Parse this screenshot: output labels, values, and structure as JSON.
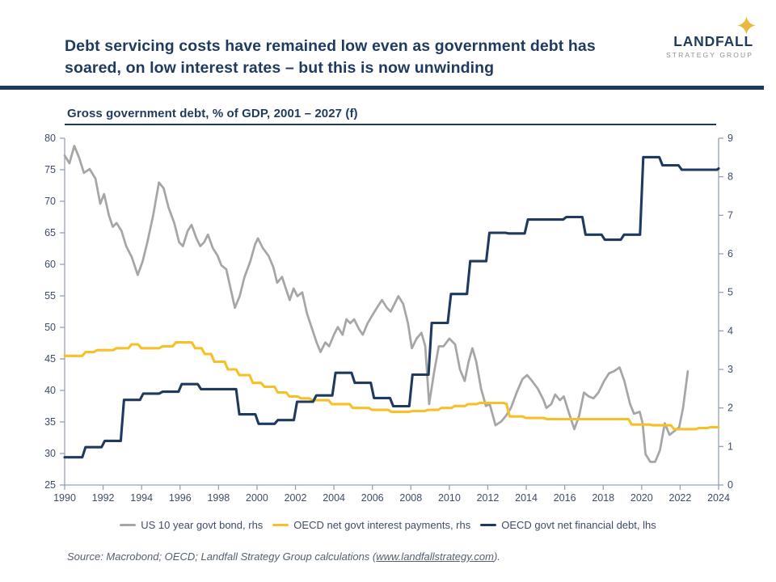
{
  "header": {
    "title_lines": [
      "Debt servicing costs have remained low even as government debt has",
      "soared, on low interest rates – but this is now unwinding"
    ],
    "logo": {
      "name": "LANDFALL",
      "subname": "STRATEGY GROUP",
      "icon": "sparkle-icon"
    }
  },
  "colors": {
    "navy": "#1F3A5F",
    "gold": "#F7C028",
    "gray_line": "#A6A6A6",
    "axis": "#95A0B5",
    "tick_text": "#3E4C66",
    "logo_gray": "#8A8F98"
  },
  "chart_data": {
    "type": "line",
    "title": "Gross government debt, % of GDP, 2001 – 2027 (f)",
    "grid": false,
    "legend_position": "bottom",
    "x_axis": {
      "min": 1990,
      "max": 2024,
      "ticks": [
        1990,
        1992,
        1994,
        1996,
        1998,
        2000,
        2002,
        2004,
        2006,
        2008,
        2010,
        2012,
        2014,
        2016,
        2018,
        2020,
        2022,
        2024
      ]
    },
    "y_axis_left": {
      "min": 25,
      "max": 80,
      "ticks": [
        25,
        30,
        35,
        40,
        45,
        50,
        55,
        60,
        65,
        70,
        75,
        80
      ]
    },
    "y_axis_right": {
      "min": 0,
      "max": 9,
      "ticks": [
        0,
        1,
        2,
        3,
        4,
        5,
        6,
        7,
        8,
        9
      ]
    },
    "series": [
      {
        "name": "US 10 year govt bond, rhs",
        "axis": "right",
        "render": "line",
        "color": "#A6A6A6",
        "points": [
          [
            1990.0,
            8.55
          ],
          [
            1990.25,
            8.35
          ],
          [
            1990.5,
            8.8
          ],
          [
            1990.75,
            8.5
          ],
          [
            1991.0,
            8.1
          ],
          [
            1991.3,
            8.2
          ],
          [
            1991.6,
            7.95
          ],
          [
            1991.85,
            7.3
          ],
          [
            1992.05,
            7.55
          ],
          [
            1992.3,
            7.0
          ],
          [
            1992.5,
            6.7
          ],
          [
            1992.7,
            6.8
          ],
          [
            1992.95,
            6.6
          ],
          [
            1993.2,
            6.2
          ],
          [
            1993.5,
            5.9
          ],
          [
            1993.8,
            5.45
          ],
          [
            1994.05,
            5.8
          ],
          [
            1994.3,
            6.3
          ],
          [
            1994.6,
            7.0
          ],
          [
            1994.9,
            7.85
          ],
          [
            1995.15,
            7.7
          ],
          [
            1995.4,
            7.2
          ],
          [
            1995.7,
            6.8
          ],
          [
            1995.95,
            6.3
          ],
          [
            1996.15,
            6.2
          ],
          [
            1996.4,
            6.6
          ],
          [
            1996.6,
            6.75
          ],
          [
            1996.85,
            6.4
          ],
          [
            1997.05,
            6.2
          ],
          [
            1997.25,
            6.3
          ],
          [
            1997.45,
            6.5
          ],
          [
            1997.7,
            6.15
          ],
          [
            1997.95,
            5.95
          ],
          [
            1998.15,
            5.7
          ],
          [
            1998.4,
            5.6
          ],
          [
            1998.65,
            5.05
          ],
          [
            1998.85,
            4.6
          ],
          [
            1999.1,
            4.9
          ],
          [
            1999.35,
            5.4
          ],
          [
            1999.65,
            5.8
          ],
          [
            1999.9,
            6.25
          ],
          [
            2000.05,
            6.4
          ],
          [
            2000.3,
            6.15
          ],
          [
            2000.6,
            5.95
          ],
          [
            2000.85,
            5.65
          ],
          [
            2001.05,
            5.25
          ],
          [
            2001.3,
            5.4
          ],
          [
            2001.5,
            5.1
          ],
          [
            2001.7,
            4.8
          ],
          [
            2001.9,
            5.1
          ],
          [
            2002.1,
            4.9
          ],
          [
            2002.35,
            5.0
          ],
          [
            2002.6,
            4.45
          ],
          [
            2002.9,
            4.0
          ],
          [
            2003.1,
            3.7
          ],
          [
            2003.3,
            3.45
          ],
          [
            2003.55,
            3.7
          ],
          [
            2003.75,
            3.6
          ],
          [
            2004.0,
            3.9
          ],
          [
            2004.2,
            4.1
          ],
          [
            2004.45,
            3.9
          ],
          [
            2004.65,
            4.3
          ],
          [
            2004.85,
            4.2
          ],
          [
            2005.05,
            4.3
          ],
          [
            2005.3,
            4.05
          ],
          [
            2005.5,
            3.9
          ],
          [
            2005.75,
            4.2
          ],
          [
            2006.05,
            4.45
          ],
          [
            2006.3,
            4.65
          ],
          [
            2006.5,
            4.8
          ],
          [
            2006.75,
            4.6
          ],
          [
            2006.95,
            4.5
          ],
          [
            2007.15,
            4.7
          ],
          [
            2007.35,
            4.9
          ],
          [
            2007.6,
            4.7
          ],
          [
            2007.85,
            4.2
          ],
          [
            2008.05,
            3.55
          ],
          [
            2008.3,
            3.8
          ],
          [
            2008.55,
            3.95
          ],
          [
            2008.75,
            3.6
          ],
          [
            2008.95,
            2.1
          ],
          [
            2009.2,
            2.9
          ],
          [
            2009.45,
            3.6
          ],
          [
            2009.7,
            3.6
          ],
          [
            2010.0,
            3.8
          ],
          [
            2010.3,
            3.65
          ],
          [
            2010.55,
            3.0
          ],
          [
            2010.8,
            2.7
          ],
          [
            2011.0,
            3.2
          ],
          [
            2011.2,
            3.55
          ],
          [
            2011.4,
            3.2
          ],
          [
            2011.65,
            2.5
          ],
          [
            2011.9,
            2.05
          ],
          [
            2012.1,
            2.1
          ],
          [
            2012.4,
            1.55
          ],
          [
            2012.7,
            1.65
          ],
          [
            2012.95,
            1.8
          ],
          [
            2013.2,
            2.0
          ],
          [
            2013.5,
            2.4
          ],
          [
            2013.8,
            2.75
          ],
          [
            2014.05,
            2.85
          ],
          [
            2014.3,
            2.7
          ],
          [
            2014.6,
            2.5
          ],
          [
            2014.9,
            2.2
          ],
          [
            2015.05,
            2.0
          ],
          [
            2015.3,
            2.1
          ],
          [
            2015.5,
            2.35
          ],
          [
            2015.75,
            2.2
          ],
          [
            2015.95,
            2.3
          ],
          [
            2016.2,
            1.9
          ],
          [
            2016.5,
            1.45
          ],
          [
            2016.75,
            1.8
          ],
          [
            2017.0,
            2.4
          ],
          [
            2017.25,
            2.3
          ],
          [
            2017.5,
            2.25
          ],
          [
            2017.75,
            2.4
          ],
          [
            2018.05,
            2.7
          ],
          [
            2018.3,
            2.9
          ],
          [
            2018.55,
            2.95
          ],
          [
            2018.85,
            3.05
          ],
          [
            2019.1,
            2.7
          ],
          [
            2019.4,
            2.1
          ],
          [
            2019.6,
            1.85
          ],
          [
            2019.9,
            1.9
          ],
          [
            2020.05,
            1.6
          ],
          [
            2020.2,
            0.8
          ],
          [
            2020.45,
            0.6
          ],
          [
            2020.7,
            0.6
          ],
          [
            2020.95,
            0.9
          ],
          [
            2021.2,
            1.6
          ],
          [
            2021.45,
            1.3
          ],
          [
            2021.7,
            1.4
          ],
          [
            2021.95,
            1.5
          ],
          [
            2022.15,
            2.0
          ],
          [
            2022.4,
            2.95
          ]
        ]
      },
      {
        "name": "OECD net govt interest payments, rhs",
        "axis": "right",
        "render": "step",
        "color": "#F7C028",
        "points": [
          [
            1990.0,
            3.35
          ],
          [
            1991.0,
            3.45
          ],
          [
            1991.6,
            3.5
          ],
          [
            1992.6,
            3.55
          ],
          [
            1993.4,
            3.65
          ],
          [
            1993.9,
            3.55
          ],
          [
            1995.0,
            3.6
          ],
          [
            1995.7,
            3.7
          ],
          [
            1996.7,
            3.55
          ],
          [
            1997.2,
            3.4
          ],
          [
            1997.7,
            3.2
          ],
          [
            1998.4,
            3.0
          ],
          [
            1999.0,
            2.85
          ],
          [
            1999.7,
            2.65
          ],
          [
            2000.3,
            2.55
          ],
          [
            2001.0,
            2.4
          ],
          [
            2001.6,
            2.3
          ],
          [
            2002.2,
            2.25
          ],
          [
            2002.8,
            2.2
          ],
          [
            2003.8,
            2.1
          ],
          [
            2004.9,
            2.0
          ],
          [
            2005.9,
            1.95
          ],
          [
            2006.9,
            1.9
          ],
          [
            2008.0,
            1.92
          ],
          [
            2008.8,
            1.95
          ],
          [
            2009.5,
            2.0
          ],
          [
            2010.2,
            2.05
          ],
          [
            2010.9,
            2.1
          ],
          [
            2011.5,
            2.13
          ],
          [
            2012.9,
            2.1
          ],
          [
            2013.05,
            1.78
          ],
          [
            2013.9,
            1.74
          ],
          [
            2015.0,
            1.71
          ],
          [
            2019.4,
            1.57
          ],
          [
            2020.5,
            1.55
          ],
          [
            2021.6,
            1.45
          ],
          [
            2022.9,
            1.48
          ],
          [
            2023.5,
            1.5
          ]
        ]
      },
      {
        "name": "OECD govt net financial debt, lhs",
        "axis": "left",
        "render": "step",
        "color": "#1F3A5F",
        "points": [
          [
            1990,
            29.4
          ],
          [
            1991,
            31.0
          ],
          [
            1992,
            32.0
          ],
          [
            1993,
            38.5
          ],
          [
            1994,
            39.5
          ],
          [
            1995,
            39.8
          ],
          [
            1996,
            41.0
          ],
          [
            1997,
            40.2
          ],
          [
            1998,
            40.2
          ],
          [
            1999,
            36.2
          ],
          [
            2000,
            34.7
          ],
          [
            2001,
            35.3
          ],
          [
            2002,
            38.2
          ],
          [
            2003,
            39.2
          ],
          [
            2004,
            42.8
          ],
          [
            2005,
            41.2
          ],
          [
            2006,
            38.8
          ],
          [
            2007,
            37.5
          ],
          [
            2008,
            42.5
          ],
          [
            2009,
            50.7
          ],
          [
            2010,
            55.3
          ],
          [
            2011,
            60.5
          ],
          [
            2012,
            65.0
          ],
          [
            2013,
            64.9
          ],
          [
            2014,
            67.1
          ],
          [
            2015,
            67.1
          ],
          [
            2016,
            67.5
          ],
          [
            2017,
            64.7
          ],
          [
            2018,
            63.9
          ],
          [
            2019,
            64.7
          ],
          [
            2020,
            77.0
          ],
          [
            2021,
            75.7
          ],
          [
            2022,
            75.0
          ],
          [
            2023,
            75.0
          ],
          [
            2024,
            75.2
          ]
        ]
      }
    ]
  },
  "footer": {
    "source_prefix": "Source: Macrobond; OECD; Landfall Strategy Group calculations (",
    "source_link": "www.landfallstrategy.com",
    "source_suffix": ")."
  }
}
